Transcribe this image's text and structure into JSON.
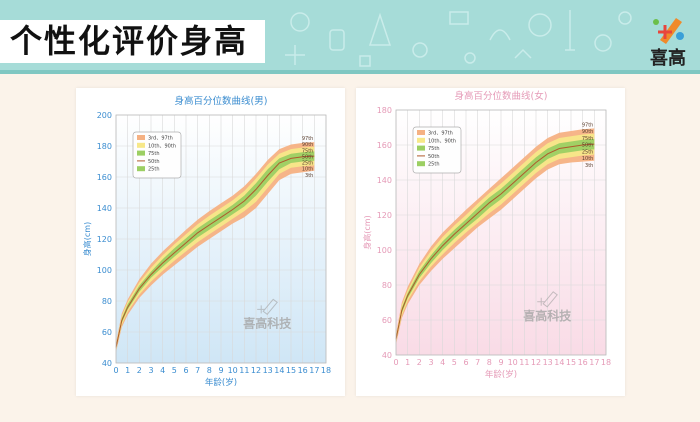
{
  "banner": {
    "title": "个性化评价身高",
    "logo_text": "喜高",
    "logo_icon": "brand-pencil-icon"
  },
  "colors": {
    "banner_bg": "#a6dcd8",
    "band_3_97": "#f5b183",
    "band_10_90": "#f7e889",
    "band_25_75": "#9ccf63",
    "median_line": "#b05a2c",
    "axis_blue": "#3b8dd0",
    "axis_pink": "#e59ab7"
  },
  "chart_data": [
    {
      "type": "area",
      "title": "身高百分位数曲线(男)",
      "xlabel": "年龄(岁)",
      "ylabel": "身高(cm)",
      "xlim": [
        0,
        18
      ],
      "ylim": [
        40,
        200
      ],
      "x_ticks": [
        0,
        1,
        2,
        3,
        4,
        5,
        6,
        7,
        8,
        9,
        10,
        11,
        12,
        13,
        14,
        15,
        16,
        17,
        18
      ],
      "y_ticks": [
        40,
        60,
        80,
        100,
        120,
        140,
        160,
        180,
        200
      ],
      "grid": true,
      "legend_position": "top-left",
      "legend": [
        "3rd、97th",
        "10th、90th",
        "75th",
        "50th",
        "25th"
      ],
      "percentile_labels": [
        "97th",
        "90th",
        "75th",
        "50th",
        "25th",
        "10th",
        "3th"
      ],
      "watermark": "喜高科技",
      "ages": [
        0,
        0.5,
        1,
        2,
        3,
        4,
        5,
        6,
        7,
        8,
        9,
        10,
        11,
        12,
        13,
        14,
        15,
        16,
        17
      ],
      "series": [
        {
          "name": "3rd",
          "values": [
            47,
            63,
            71,
            82,
            90,
            97,
            103,
            109,
            115,
            120,
            125,
            130,
            134,
            140,
            149,
            158,
            162,
            163,
            164
          ]
        },
        {
          "name": "10th",
          "values": [
            48,
            64.5,
            73,
            84,
            92.5,
            99.5,
            106,
            112,
            118,
            123,
            128,
            133,
            138,
            144,
            153,
            162,
            166,
            167,
            167.5
          ]
        },
        {
          "name": "25th",
          "values": [
            49,
            66,
            74.5,
            86,
            95,
            102,
            108.5,
            115,
            121,
            126,
            131,
            136,
            141,
            148,
            157,
            165,
            169,
            170,
            170.5
          ]
        },
        {
          "name": "50th",
          "values": [
            50,
            67.5,
            76,
            88,
            97,
            104.5,
            111,
            117.5,
            124,
            129,
            134,
            139,
            144.5,
            152,
            161,
            169,
            172,
            173,
            173.5
          ]
        },
        {
          "name": "75th",
          "values": [
            51,
            69,
            78,
            90,
            99,
            107,
            114,
            120.5,
            127,
            132,
            137,
            142,
            148,
            156,
            165,
            172,
            175,
            176,
            176.5
          ]
        },
        {
          "name": "90th",
          "values": [
            52,
            70.5,
            79.5,
            92,
            101.5,
            109.5,
            116.5,
            123,
            129.5,
            135,
            140,
            145,
            151,
            159,
            168,
            175,
            178,
            179,
            179.5
          ]
        },
        {
          "name": "97th",
          "values": [
            53,
            72,
            81,
            94,
            104,
            112,
            119,
            126,
            132.5,
            138,
            143,
            148,
            154,
            162,
            171,
            178,
            181,
            182,
            182.5
          ]
        }
      ]
    },
    {
      "type": "area",
      "title": "身高百分位数曲线(女)",
      "xlabel": "年龄(岁)",
      "ylabel": "身高(cm)",
      "xlim": [
        0,
        18
      ],
      "ylim": [
        40,
        180
      ],
      "x_ticks": [
        0,
        1,
        2,
        3,
        4,
        5,
        6,
        7,
        8,
        9,
        10,
        11,
        12,
        13,
        14,
        15,
        16,
        17,
        18
      ],
      "y_ticks": [
        40,
        60,
        80,
        100,
        120,
        140,
        160,
        180
      ],
      "grid": true,
      "legend_position": "top-left",
      "legend": [
        "3rd、97th",
        "10th、90th",
        "75th",
        "50th",
        "25th"
      ],
      "percentile_labels": [
        "97th",
        "90th",
        "75th",
        "50th",
        "25th",
        "10th",
        "3th"
      ],
      "watermark": "喜高科技",
      "ages": [
        0,
        0.5,
        1,
        2,
        3,
        4,
        5,
        6,
        7,
        8,
        9,
        10,
        11,
        12,
        13,
        14,
        15,
        16,
        17
      ],
      "series": [
        {
          "name": "3rd",
          "values": [
            46,
            61,
            69,
            80,
            88,
            95,
            101,
            107,
            113,
            118,
            123,
            129,
            135,
            141,
            146,
            149,
            150,
            150.5,
            151
          ]
        },
        {
          "name": "10th",
          "values": [
            47,
            62.5,
            71,
            82,
            90.5,
            97.5,
            104,
            110,
            115.5,
            121,
            126,
            132,
            138,
            144,
            149,
            152,
            153,
            154,
            154.5
          ]
        },
        {
          "name": "25th",
          "values": [
            48,
            64,
            72.5,
            84,
            92.5,
            100,
            106.5,
            112.5,
            118,
            124,
            129,
            135,
            141,
            147,
            152,
            155,
            156,
            157,
            157.5
          ]
        },
        {
          "name": "50th",
          "values": [
            49,
            65.5,
            74,
            86,
            95,
            102.5,
            109,
            115,
            121,
            127,
            132,
            138,
            144,
            150,
            155,
            158,
            159,
            160,
            160.5
          ]
        },
        {
          "name": "75th",
          "values": [
            50,
            67,
            75.5,
            88,
            97,
            105,
            111.5,
            117.5,
            124,
            130,
            135,
            141,
            147,
            153,
            158,
            161,
            162,
            163,
            163.5
          ]
        },
        {
          "name": "90th",
          "values": [
            51,
            68.5,
            77,
            90,
            99.5,
            107.5,
            114,
            120,
            126.5,
            132.5,
            138,
            144,
            150,
            156,
            161,
            164,
            165,
            166,
            166.5
          ]
        },
        {
          "name": "97th",
          "values": [
            52,
            70,
            79,
            92,
            102,
            110,
            116.5,
            123,
            129,
            135,
            141,
            147,
            153,
            159,
            164,
            167,
            168,
            169,
            169.5
          ]
        }
      ]
    }
  ]
}
